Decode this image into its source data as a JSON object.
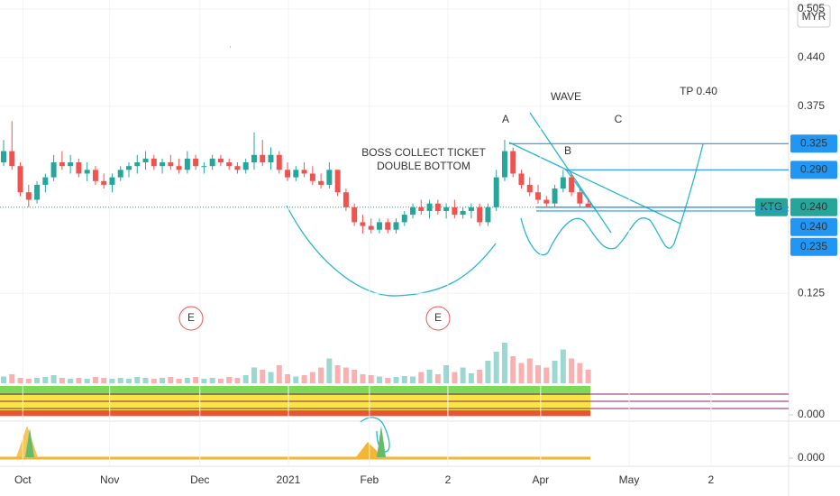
{
  "chart_data": {
    "type": "candlestick",
    "currency": "MYR",
    "up_color": "#26a69a",
    "down_color": "#ef5350",
    "series": [
      {
        "name": "KTG",
        "color": "#26a69a",
        "ohlc": [
          [
            0.3,
            0.33,
            0.295,
            0.315
          ],
          [
            0.315,
            0.355,
            0.29,
            0.295
          ],
          [
            0.295,
            0.3,
            0.255,
            0.26
          ],
          [
            0.26,
            0.27,
            0.24,
            0.25
          ],
          [
            0.25,
            0.275,
            0.245,
            0.27
          ],
          [
            0.27,
            0.285,
            0.26,
            0.28
          ],
          [
            0.28,
            0.31,
            0.275,
            0.3
          ],
          [
            0.3,
            0.315,
            0.29,
            0.295
          ],
          [
            0.295,
            0.31,
            0.285,
            0.3
          ],
          [
            0.3,
            0.305,
            0.28,
            0.285
          ],
          [
            0.285,
            0.3,
            0.275,
            0.29
          ],
          [
            0.29,
            0.295,
            0.27,
            0.275
          ],
          [
            0.275,
            0.285,
            0.265,
            0.27
          ],
          [
            0.27,
            0.285,
            0.26,
            0.28
          ],
          [
            0.28,
            0.295,
            0.275,
            0.29
          ],
          [
            0.29,
            0.3,
            0.28,
            0.295
          ],
          [
            0.295,
            0.31,
            0.285,
            0.3
          ],
          [
            0.3,
            0.315,
            0.29,
            0.305
          ],
          [
            0.305,
            0.31,
            0.29,
            0.295
          ],
          [
            0.295,
            0.305,
            0.285,
            0.3
          ],
          [
            0.3,
            0.31,
            0.29,
            0.295
          ],
          [
            0.295,
            0.305,
            0.285,
            0.29
          ],
          [
            0.29,
            0.315,
            0.285,
            0.305
          ],
          [
            0.305,
            0.31,
            0.29,
            0.295
          ],
          [
            0.295,
            0.3,
            0.285,
            0.295
          ],
          [
            0.295,
            0.31,
            0.29,
            0.305
          ],
          [
            0.305,
            0.31,
            0.295,
            0.3
          ],
          [
            0.3,
            0.305,
            0.29,
            0.295
          ],
          [
            0.295,
            0.3,
            0.285,
            0.29
          ],
          [
            0.29,
            0.305,
            0.285,
            0.3
          ],
          [
            0.3,
            0.34,
            0.29,
            0.31
          ],
          [
            0.31,
            0.33,
            0.295,
            0.3
          ],
          [
            0.3,
            0.32,
            0.29,
            0.31
          ],
          [
            0.31,
            0.315,
            0.285,
            0.29
          ],
          [
            0.29,
            0.3,
            0.275,
            0.28
          ],
          [
            0.28,
            0.295,
            0.275,
            0.29
          ],
          [
            0.29,
            0.3,
            0.28,
            0.285
          ],
          [
            0.285,
            0.295,
            0.27,
            0.275
          ],
          [
            0.275,
            0.285,
            0.265,
            0.27
          ],
          [
            0.27,
            0.3,
            0.265,
            0.29
          ],
          [
            0.29,
            0.29,
            0.255,
            0.26
          ],
          [
            0.26,
            0.265,
            0.235,
            0.24
          ],
          [
            0.24,
            0.245,
            0.215,
            0.22
          ],
          [
            0.22,
            0.23,
            0.205,
            0.215
          ],
          [
            0.215,
            0.225,
            0.205,
            0.21
          ],
          [
            0.21,
            0.225,
            0.205,
            0.22
          ],
          [
            0.22,
            0.225,
            0.205,
            0.21
          ],
          [
            0.21,
            0.225,
            0.205,
            0.22
          ],
          [
            0.22,
            0.235,
            0.215,
            0.23
          ],
          [
            0.23,
            0.245,
            0.225,
            0.24
          ],
          [
            0.24,
            0.25,
            0.23,
            0.235
          ],
          [
            0.235,
            0.25,
            0.225,
            0.245
          ],
          [
            0.245,
            0.25,
            0.23,
            0.235
          ],
          [
            0.235,
            0.245,
            0.225,
            0.24
          ],
          [
            0.24,
            0.25,
            0.225,
            0.23
          ],
          [
            0.23,
            0.24,
            0.225,
            0.235
          ],
          [
            0.235,
            0.245,
            0.225,
            0.24
          ],
          [
            0.24,
            0.245,
            0.215,
            0.22
          ],
          [
            0.22,
            0.245,
            0.215,
            0.24
          ],
          [
            0.24,
            0.29,
            0.235,
            0.28
          ],
          [
            0.28,
            0.33,
            0.275,
            0.315
          ],
          [
            0.315,
            0.32,
            0.28,
            0.285
          ],
          [
            0.285,
            0.29,
            0.265,
            0.27
          ],
          [
            0.27,
            0.28,
            0.255,
            0.26
          ],
          [
            0.26,
            0.27,
            0.245,
            0.25
          ],
          [
            0.25,
            0.255,
            0.24,
            0.245
          ],
          [
            0.245,
            0.27,
            0.24,
            0.265
          ],
          [
            0.265,
            0.29,
            0.26,
            0.28
          ],
          [
            0.28,
            0.285,
            0.255,
            0.26
          ],
          [
            0.26,
            0.265,
            0.24,
            0.245
          ],
          [
            0.245,
            0.25,
            0.24,
            0.24
          ]
        ]
      }
    ],
    "volume": [
      15,
      20,
      12,
      10,
      12,
      14,
      18,
      12,
      10,
      12,
      10,
      14,
      12,
      10,
      12,
      10,
      14,
      12,
      10,
      12,
      14,
      10,
      12,
      14,
      10,
      12,
      10,
      14,
      12,
      18,
      35,
      30,
      25,
      40,
      20,
      15,
      18,
      25,
      35,
      55,
      40,
      35,
      30,
      20,
      18,
      15,
      12,
      14,
      16,
      15,
      25,
      30,
      20,
      40,
      25,
      35,
      22,
      30,
      50,
      70,
      90,
      60,
      45,
      55,
      40,
      35,
      50,
      75,
      55,
      45,
      30
    ],
    "xlim": [
      0,
      94
    ],
    "xticks": [
      {
        "value": 2.3,
        "label": "Oct"
      },
      {
        "value": 12.7,
        "label": "Nov"
      },
      {
        "value": 23.5,
        "label": "Dec"
      },
      {
        "value": 34.1,
        "label": "2021"
      },
      {
        "value": 43.8,
        "label": "Feb"
      },
      {
        "value": 53.2,
        "label": "2"
      },
      {
        "value": 64.3,
        "label": "Apr"
      },
      {
        "value": 74.9,
        "label": "May"
      },
      {
        "value": 84.7,
        "label": "2"
      }
    ],
    "ylim": [
      0.065,
      0.517
    ],
    "yticks": [
      0.505,
      {
        "value": 0.44,
        "label": "0.440"
      },
      0.375,
      0.125
    ],
    "grid": true,
    "levels": [
      {
        "value": 0.325,
        "label": "0.325",
        "color": "#2196f3"
      },
      {
        "value": 0.29,
        "label": "0.290",
        "color": "#2196f3"
      },
      {
        "value": 0.24,
        "label": "0.240",
        "color": "#26a69a"
      },
      {
        "value": 0.24,
        "label": "0.240",
        "color": "#2196f3"
      },
      {
        "value": 0.235,
        "label": "0.235",
        "color": "#2196f3"
      }
    ],
    "pane_ticks": [
      {
        "value": 0,
        "label": "0.000"
      },
      {
        "value": 0,
        "label": "0.000"
      }
    ],
    "annotations": [
      {
        "text": "WAVE",
        "color": "#2196f3"
      },
      {
        "text": "TP 0.40",
        "color": "#2196f3"
      },
      {
        "text": "A",
        "color": "#2196f3"
      },
      {
        "text": "B",
        "color": "#2196f3"
      },
      {
        "text": "C",
        "color": "#2196f3"
      },
      {
        "text": "BOSS COLLECT TICKET",
        "color": "#2196f3"
      },
      {
        "text": "DOUBLE BOTTOM",
        "color": "#2196f3"
      },
      {
        "text": "E",
        "color": "#ef5350"
      },
      {
        "text": "E",
        "color": "#ef5350"
      }
    ]
  }
}
